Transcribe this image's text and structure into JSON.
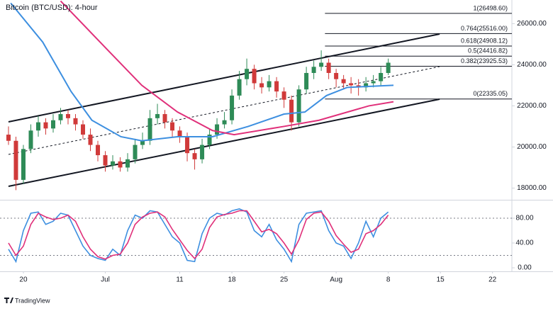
{
  "chart_data": [
    {
      "type": "candlestick",
      "title": "Bitcoin (BTC/USD): 4-hour",
      "x": [
        -2,
        -1,
        0,
        1,
        2,
        3,
        4,
        5,
        6,
        7,
        8,
        9,
        10,
        11,
        12,
        13,
        14,
        15,
        16,
        17,
        18,
        19,
        20,
        21,
        22,
        23,
        24,
        25,
        26,
        27,
        28,
        29,
        30,
        31,
        32,
        33,
        34,
        35,
        36,
        37,
        38,
        39,
        40,
        41,
        42,
        43,
        44,
        45,
        46,
        47,
        48,
        49
      ],
      "open": [
        20600,
        20300,
        18400,
        19900,
        20800,
        21200,
        20900,
        21300,
        21600,
        21400,
        21100,
        20600,
        20100,
        19600,
        19100,
        19300,
        19000,
        19400,
        20100,
        20300,
        21400,
        21600,
        21200,
        20800,
        20500,
        19700,
        19400,
        20100,
        20600,
        21100,
        21300,
        22500,
        23300,
        23800,
        23100,
        22900,
        23200,
        22700,
        22300,
        21200,
        22800,
        23600,
        23900,
        24100,
        23600,
        23300,
        23100,
        23000,
        22900,
        23100,
        23200,
        23600
      ],
      "high": [
        21000,
        20500,
        20100,
        21100,
        21500,
        21400,
        21600,
        21900,
        21800,
        21600,
        21300,
        20900,
        20300,
        19800,
        19600,
        19500,
        19700,
        20400,
        20700,
        21800,
        22100,
        21800,
        21400,
        21000,
        20700,
        19900,
        20400,
        20900,
        21400,
        21700,
        22800,
        23700,
        24300,
        24000,
        23400,
        23500,
        23400,
        22900,
        22500,
        23000,
        23900,
        24200,
        24700,
        24300,
        23800,
        23500,
        23400,
        23300,
        23400,
        23500,
        23900,
        24300
      ],
      "low": [
        20100,
        17900,
        18200,
        19700,
        20500,
        20600,
        20700,
        21100,
        21100,
        20800,
        20400,
        19800,
        19300,
        18800,
        18900,
        18800,
        18800,
        19200,
        19900,
        20100,
        21100,
        20900,
        20500,
        20200,
        19300,
        18900,
        19200,
        19900,
        20400,
        20900,
        21100,
        22300,
        23000,
        22800,
        22600,
        22700,
        22400,
        21900,
        20800,
        21000,
        22600,
        23300,
        23700,
        23300,
        22900,
        22800,
        22600,
        22500,
        22700,
        22900,
        23000,
        23500
      ],
      "close": [
        20300,
        18400,
        19900,
        20800,
        21200,
        20900,
        21300,
        21600,
        21400,
        21100,
        20600,
        20100,
        19600,
        19100,
        19300,
        19000,
        19400,
        20100,
        20300,
        21400,
        21600,
        21200,
        20800,
        20500,
        19700,
        19400,
        20100,
        20600,
        21100,
        21300,
        22500,
        23300,
        23800,
        23100,
        22900,
        23200,
        22700,
        22300,
        21200,
        22800,
        23600,
        23900,
        24100,
        23600,
        23300,
        23100,
        23000,
        22900,
        23100,
        23200,
        23600,
        24100
      ],
      "up_color": "#2e8b57",
      "down_color": "#d03a3a",
      "xlim": [
        -3.14,
        65.6
      ],
      "ylim": [
        17500,
        27150
      ],
      "yticks": [
        {
          "value": 18000,
          "label": "18000.00"
        },
        {
          "value": 20000,
          "label": "20000.00"
        },
        {
          "value": 22000,
          "label": "22000.00"
        },
        {
          "value": 24000,
          "label": "24000.00"
        },
        {
          "value": 26000,
          "label": "26000.00"
        }
      ],
      "lines": [
        {
          "color": "#3d8fe0",
          "x": [
            -1.7,
            2.6,
            6.4,
            9.2,
            13.1,
            15.9,
            20.7,
            25.4,
            30.2,
            35,
            37.8,
            40.7,
            43.5,
            49.7
          ],
          "values": [
            27000,
            25100,
            22700,
            21300,
            20500,
            20300,
            20500,
            20500,
            21000,
            21600,
            21700,
            22500,
            22900,
            23000
          ]
        },
        {
          "color": "#e0307a",
          "x": [
            5,
            11.1,
            15.9,
            20.7,
            25.4,
            28.3,
            35,
            39.7,
            46.4,
            49.7
          ],
          "values": [
            27100,
            24800,
            23000,
            21700,
            20800,
            20600,
            21000,
            21300,
            22000,
            22200
          ]
        }
      ],
      "trendlines": [
        {
          "x": [
            -2,
            55.9
          ],
          "values": [
            21222,
            25496
          ],
          "dashed": false
        },
        {
          "x": [
            -2,
            55.9
          ],
          "values": [
            18086,
            22325
          ],
          "dashed": false
        },
        {
          "x": [
            -2,
            55.9
          ],
          "values": [
            19637,
            23910
          ],
          "dashed": true
        }
      ],
      "fib_start": 40.5,
      "levels": [
        {
          "value": 26498.6,
          "label": "1(26498.60)"
        },
        {
          "value": 25516.0,
          "label": "0.764(25516.00)"
        },
        {
          "value": 24908.12,
          "label": "0.618(24908.12)"
        },
        {
          "value": 24416.82,
          "label": "0.5(24416.82)"
        },
        {
          "value": 23925.53,
          "label": "0.382(23925.53)"
        },
        {
          "value": 22335.05,
          "label": "0(22335.05)"
        }
      ]
    },
    {
      "type": "line",
      "x": [
        -2,
        -1,
        0,
        1,
        2,
        3,
        4,
        5,
        6,
        7,
        8,
        9,
        10,
        11,
        12,
        13,
        14,
        15,
        16,
        17,
        18,
        19,
        20,
        21,
        22,
        23,
        24,
        25,
        26,
        27,
        28,
        29,
        30,
        31,
        32,
        33,
        34,
        35,
        36,
        37,
        38,
        39,
        40,
        41,
        42,
        43,
        44,
        45,
        46,
        47,
        48,
        49
      ],
      "series": [
        {
          "color": "#3d8fe0",
          "values": [
            30,
            10,
            60,
            88,
            90,
            70,
            75,
            88,
            85,
            60,
            35,
            20,
            15,
            12,
            30,
            20,
            60,
            85,
            80,
            92,
            90,
            70,
            50,
            40,
            12,
            10,
            55,
            80,
            88,
            85,
            92,
            95,
            90,
            60,
            50,
            70,
            45,
            30,
            10,
            70,
            88,
            90,
            92,
            60,
            40,
            35,
            15,
            40,
            75,
            50,
            80,
            90
          ]
        },
        {
          "color": "#e0307a",
          "values": [
            40,
            20,
            35,
            70,
            88,
            82,
            78,
            80,
            85,
            75,
            50,
            30,
            18,
            14,
            20,
            22,
            40,
            70,
            82,
            88,
            90,
            82,
            62,
            45,
            28,
            15,
            30,
            65,
            82,
            86,
            88,
            92,
            92,
            75,
            58,
            62,
            55,
            40,
            22,
            45,
            78,
            88,
            90,
            75,
            52,
            38,
            25,
            30,
            55,
            60,
            70,
            85
          ]
        }
      ],
      "xlim": [
        -3.14,
        65.6
      ],
      "ylim": [
        0,
        100
      ],
      "yticks": [
        {
          "value": 0,
          "label": "0.00"
        },
        {
          "value": 40,
          "label": "40.00"
        },
        {
          "value": 80,
          "label": "80.00"
        }
      ],
      "reference_lines": [
        80,
        20
      ],
      "xticks": [
        {
          "value": 0,
          "label": "20"
        },
        {
          "value": 11,
          "label": "Jul"
        },
        {
          "value": 21,
          "label": "11"
        },
        {
          "value": 28,
          "label": "18"
        },
        {
          "value": 35,
          "label": "25"
        },
        {
          "value": 42,
          "label": "Aug"
        },
        {
          "value": 49,
          "label": "8"
        },
        {
          "value": 56,
          "label": "15"
        },
        {
          "value": 63,
          "label": "22"
        }
      ]
    }
  ],
  "brand": "TradingView"
}
